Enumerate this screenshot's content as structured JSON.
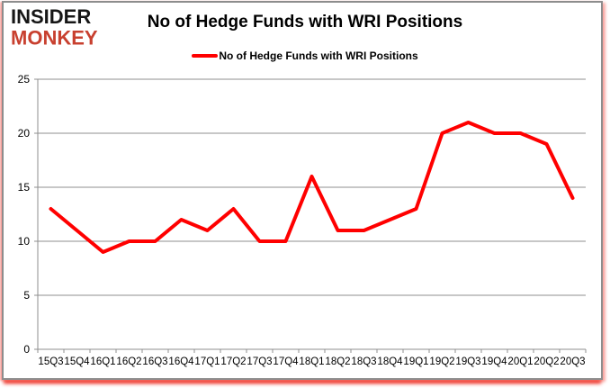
{
  "logo": {
    "line1": "INSIDER",
    "line2": "MONKEY"
  },
  "title": "No of Hedge Funds with WRI Positions",
  "legend": {
    "label": "No of Hedge Funds with WRI Positions"
  },
  "colors": {
    "logo_accent": "#c8402f",
    "line": "#ff0000",
    "grid": "#8f8f8f",
    "axis": "#8f8f8f",
    "text": "#000000"
  },
  "chart_data": {
    "type": "line",
    "title": "No of Hedge Funds with WRI Positions",
    "series_name": "No of Hedge Funds with WRI Positions",
    "categories": [
      "15Q3",
      "15Q4",
      "16Q1",
      "16Q2",
      "16Q3",
      "16Q4",
      "17Q1",
      "17Q2",
      "17Q3",
      "17Q4",
      "18Q1",
      "18Q2",
      "18Q3",
      "18Q4",
      "19Q1",
      "19Q2",
      "19Q3",
      "19Q4",
      "20Q1",
      "20Q2",
      "20Q3"
    ],
    "values": [
      13,
      11,
      9,
      10,
      10,
      12,
      11,
      13,
      10,
      10,
      16,
      11,
      11,
      12,
      13,
      20,
      21,
      20,
      20,
      19,
      14
    ],
    "ylim": [
      0,
      25
    ],
    "yticks": [
      0,
      5,
      10,
      15,
      20,
      25
    ],
    "grid": true,
    "legend_position": "top",
    "line_color": "#ff0000",
    "line_width": 4,
    "gridline_color": "#8f8f8f",
    "axis_color": "#8f8f8f",
    "text_color": "#000000"
  }
}
